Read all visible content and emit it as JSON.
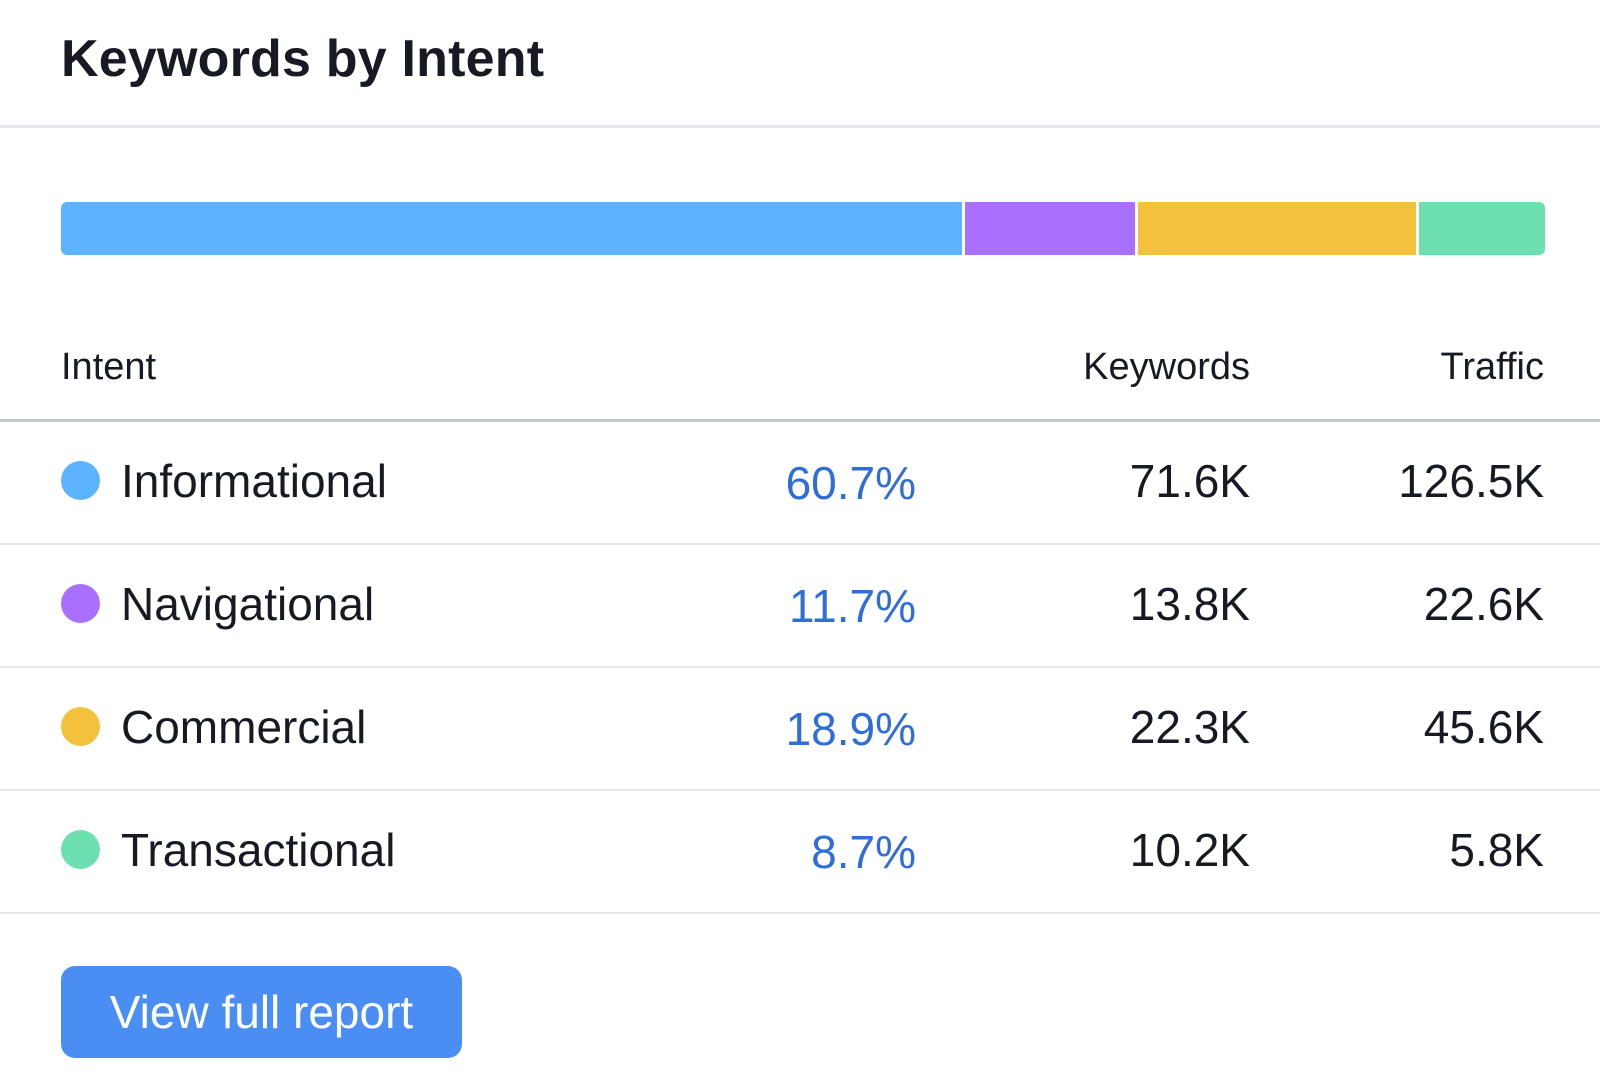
{
  "title": "Keywords by Intent",
  "colors": {
    "informational": "#5cb3ff",
    "navigational": "#a96ffd",
    "commercial": "#f4c13d",
    "transactional": "#6ddfb0",
    "percent_text": "#2f6ed8",
    "button_bg": "#4a8ef3"
  },
  "table": {
    "headers": {
      "intent": "Intent",
      "keywords": "Keywords",
      "traffic": "Traffic"
    },
    "rows": [
      {
        "key": "informational",
        "name": "Informational",
        "percent": "60.7%",
        "share": 60.7,
        "keywords": "71.6K",
        "traffic": "126.5K",
        "color": "#5cb3ff"
      },
      {
        "key": "navigational",
        "name": "Navigational",
        "percent": "11.7%",
        "share": 11.7,
        "keywords": "13.8K",
        "traffic": "22.6K",
        "color": "#a96ffd"
      },
      {
        "key": "commercial",
        "name": "Commercial",
        "percent": "18.9%",
        "share": 18.9,
        "keywords": "22.3K",
        "traffic": "45.6K",
        "color": "#f4c13d"
      },
      {
        "key": "transactional",
        "name": "Transactional",
        "percent": "8.7%",
        "share": 8.7,
        "keywords": "10.2K",
        "traffic": "5.8K",
        "color": "#6ddfb0"
      }
    ]
  },
  "button": {
    "label": "View full report"
  }
}
